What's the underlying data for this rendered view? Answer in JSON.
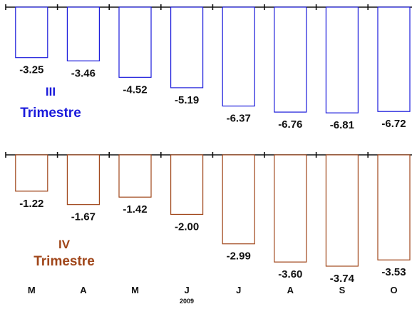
{
  "chart_data": [
    {
      "type": "bar",
      "panel_label": [
        "III",
        "Trimestre"
      ],
      "categories": [
        "M",
        "A",
        "M",
        "J",
        "J",
        "A",
        "S",
        "O"
      ],
      "values": [
        -3.25,
        -3.46,
        -4.52,
        -5.19,
        -6.37,
        -6.76,
        -6.81,
        -6.72
      ],
      "value_labels": [
        "-3.25",
        "-3.46",
        "-4.52",
        "-5.19",
        "-6.37",
        "-6.76",
        "-6.81",
        "-6.72"
      ],
      "ylim": [
        -7.4,
        0
      ],
      "color": "#1a1adb",
      "grid": false,
      "legend": "none"
    },
    {
      "type": "bar",
      "panel_label": [
        "IV",
        "Trimestre"
      ],
      "categories": [
        "M",
        "A",
        "M",
        "J",
        "J",
        "A",
        "S",
        "O"
      ],
      "values": [
        -1.22,
        -1.67,
        -1.42,
        -2.0,
        -2.99,
        -3.6,
        -3.74,
        -3.53
      ],
      "value_labels": [
        "-1.22",
        "-1.67",
        "-1.42",
        "-2.00",
        "-2.99",
        "-3.60",
        "-3.74",
        "-3.53"
      ],
      "ylim": [
        -4.1,
        0
      ],
      "color": "#a0461a",
      "grid": false,
      "legend": "none"
    }
  ],
  "x_axis": {
    "tick_labels": [
      "M",
      "A",
      "M",
      "J",
      "J",
      "A",
      "S",
      "O"
    ],
    "year_label": "2009"
  }
}
